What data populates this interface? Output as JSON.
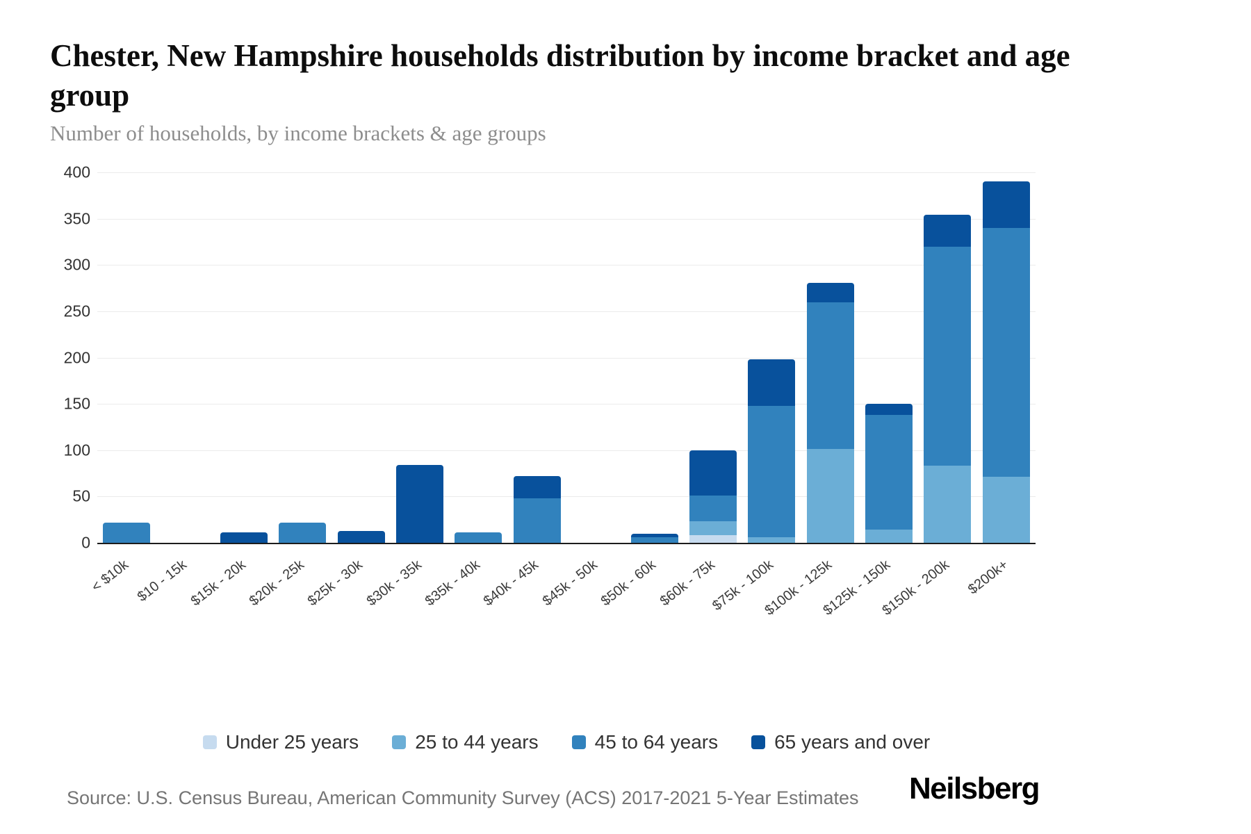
{
  "page": {
    "title": "Chester, New Hampshire households distribution by income bracket and age group",
    "subtitle": "Number of households, by income brackets & age groups",
    "source": "Source: U.S. Census Bureau, American Community Survey (ACS) 2017-2021 5-Year Estimates",
    "logo": "Neilsberg"
  },
  "chart_data": {
    "type": "bar",
    "stacked": true,
    "title": "Chester, New Hampshire households distribution by income bracket and age group",
    "subtitle": "Number of households, by income brackets & age groups",
    "xlabel": "",
    "ylabel": "",
    "ylim": [
      0,
      400
    ],
    "ytick_step": 50,
    "grid": true,
    "legend_position": "bottom",
    "categories": [
      "< $10k",
      "$10 - 15k",
      "$15k - 20k",
      "$20k - 25k",
      "$25k - 30k",
      "$30k - 35k",
      "$35k - 40k",
      "$40k - 45k",
      "$45k - 50k",
      "$50k - 60k",
      "$60k - 75k",
      "$75k - 100k",
      "$100k - 125k",
      "$125k - 150k",
      "$150k - 200k",
      "$200k+"
    ],
    "series": [
      {
        "name": "Under 25 years",
        "color": "#c6dbef",
        "values": [
          0,
          0,
          0,
          0,
          0,
          0,
          0,
          0,
          0,
          0,
          8,
          0,
          0,
          0,
          0,
          0
        ]
      },
      {
        "name": "25 to 44 years",
        "color": "#6baed6",
        "values": [
          0,
          0,
          0,
          0,
          0,
          0,
          0,
          0,
          0,
          0,
          15,
          6,
          101,
          14,
          83,
          71
        ]
      },
      {
        "name": "45 to 64 years",
        "color": "#3182bd",
        "values": [
          22,
          0,
          0,
          22,
          0,
          0,
          11,
          48,
          0,
          6,
          28,
          142,
          159,
          124,
          237,
          269
        ]
      },
      {
        "name": "65 years and over",
        "color": "#08519c",
        "values": [
          0,
          0,
          11,
          0,
          13,
          84,
          0,
          24,
          0,
          4,
          49,
          50,
          21,
          12,
          34,
          50
        ]
      }
    ]
  }
}
